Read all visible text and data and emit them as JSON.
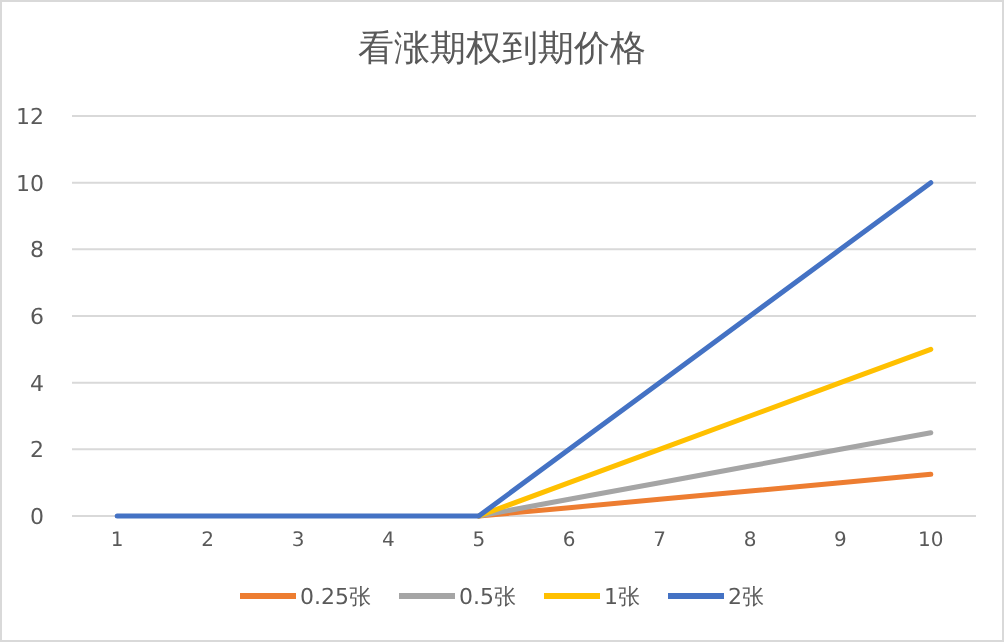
{
  "chart_data": {
    "type": "line",
    "title": "看涨期权到期价格",
    "categories": [
      "1",
      "2",
      "3",
      "4",
      "5",
      "6",
      "7",
      "8",
      "9",
      "10"
    ],
    "series": [
      {
        "name": "0.25张",
        "color": "#ed7d31",
        "values": [
          null,
          null,
          null,
          null,
          0,
          0.25,
          0.5,
          0.75,
          1,
          1.25
        ]
      },
      {
        "name": "0.5张",
        "color": "#a5a5a5",
        "values": [
          null,
          null,
          null,
          null,
          0,
          0.5,
          1,
          1.5,
          2,
          2.5
        ]
      },
      {
        "name": "1张",
        "color": "#ffc000",
        "values": [
          null,
          null,
          null,
          null,
          0,
          1,
          2,
          3,
          4,
          5
        ]
      },
      {
        "name": "2张",
        "color": "#4472c4",
        "values": [
          0,
          0,
          0,
          0,
          0,
          2,
          4,
          6,
          8,
          10
        ]
      }
    ],
    "ylim": [
      0,
      12
    ],
    "yticks": [
      0,
      2,
      4,
      6,
      8,
      10,
      12
    ],
    "grid": "y",
    "legend": "bottom"
  }
}
